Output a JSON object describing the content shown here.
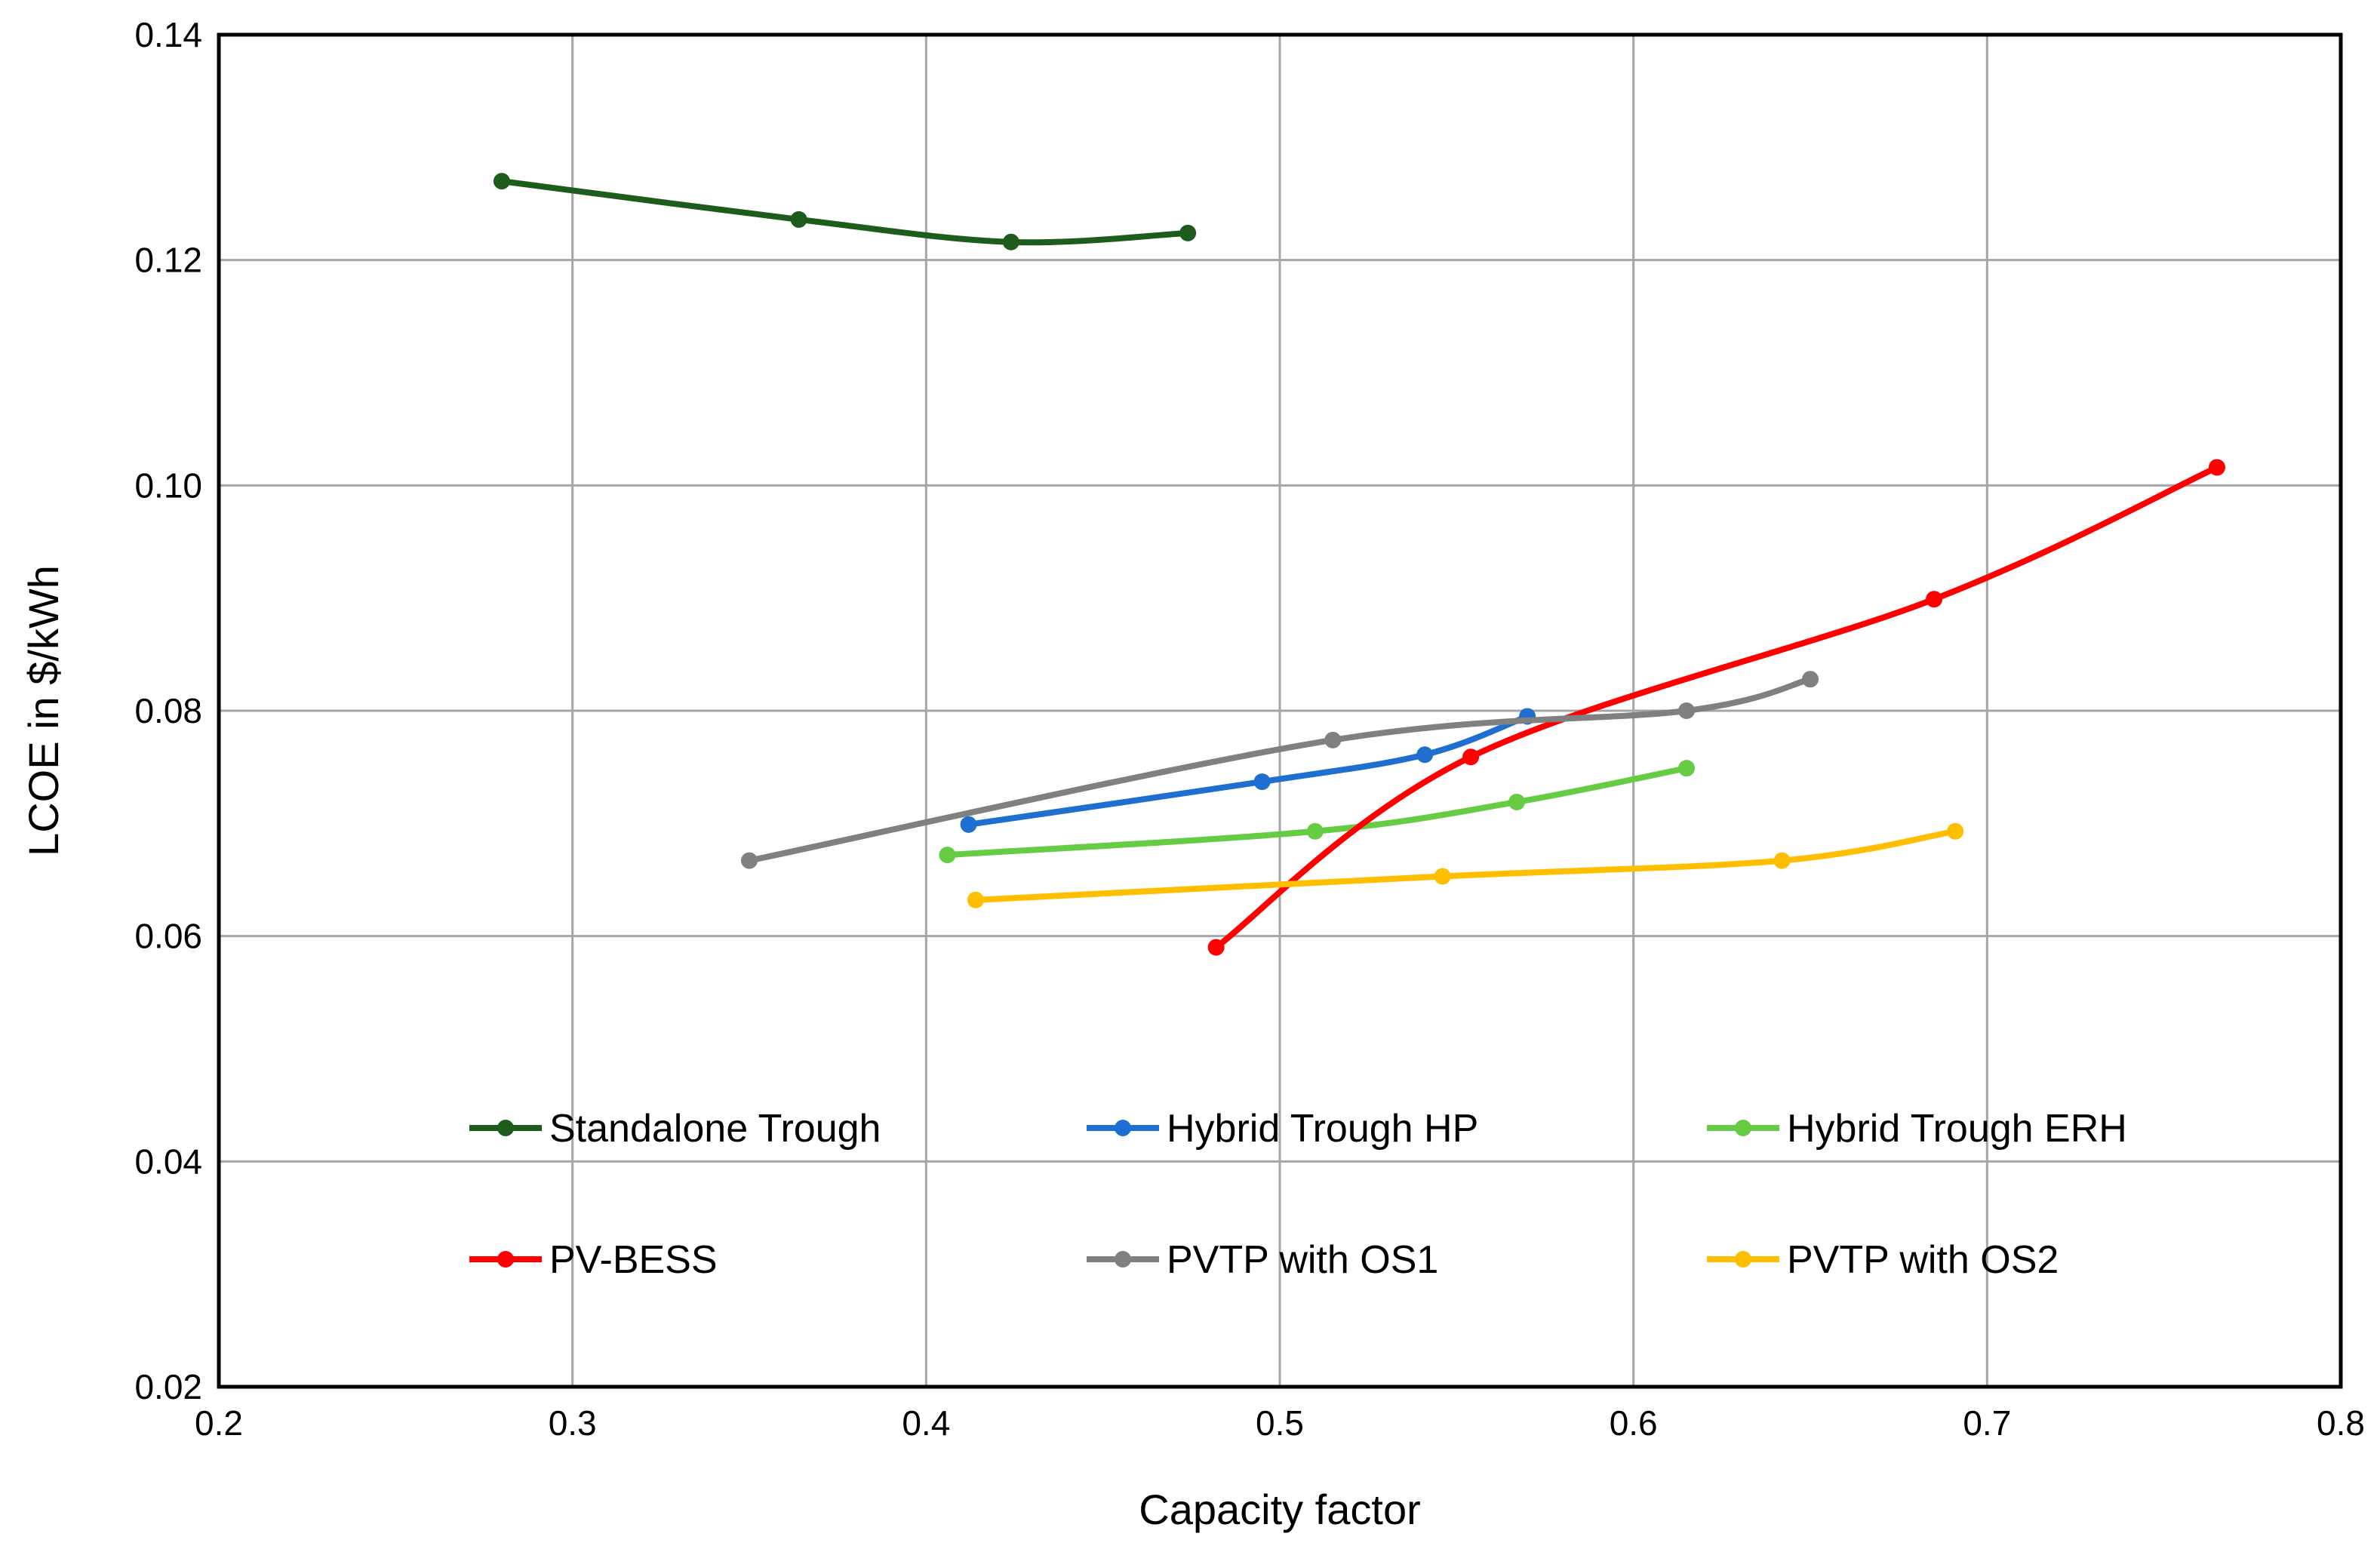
{
  "chart_data": {
    "type": "line",
    "title": "",
    "xlabel": "Capacity factor",
    "ylabel": "LCOE in $/kWh",
    "xlim": [
      0.2,
      0.8
    ],
    "ylim": [
      0.02,
      0.14
    ],
    "x_ticks": [
      0.2,
      0.3,
      0.4,
      0.5,
      0.6,
      0.7,
      0.8
    ],
    "x_tick_labels": [
      "0.2",
      "0.3",
      "0.4",
      "0.5",
      "0.6",
      "0.7",
      "0.8"
    ],
    "y_ticks": [
      0.02,
      0.04,
      0.06,
      0.08,
      0.1,
      0.12,
      0.14
    ],
    "y_tick_labels": [
      "0.02",
      "0.04",
      "0.06",
      "0.08",
      "0.10",
      "0.12",
      "0.14"
    ],
    "grid": true,
    "legend_position": "lower-center-inside",
    "series": [
      {
        "name": "Standalone Trough",
        "color": "#1e5c1e",
        "x": [
          0.28,
          0.364,
          0.424,
          0.474
        ],
        "y": [
          0.127,
          0.1236,
          0.1216,
          0.1224
        ]
      },
      {
        "name": "Hybrid Trough HP",
        "color": "#1f6fd1",
        "x": [
          0.412,
          0.495,
          0.541,
          0.57
        ],
        "y": [
          0.0699,
          0.0737,
          0.0761,
          0.0795
        ]
      },
      {
        "name": "Hybrid Trough ERH",
        "color": "#66cc44",
        "x": [
          0.406,
          0.51,
          0.567,
          0.615
        ],
        "y": [
          0.0672,
          0.0693,
          0.0719,
          0.0749
        ]
      },
      {
        "name": "PV-BESS",
        "color": "#ff0000",
        "x": [
          0.482,
          0.554,
          0.685,
          0.765
        ],
        "y": [
          0.059,
          0.0759,
          0.0899,
          0.1016
        ]
      },
      {
        "name": "PVTP with OS1",
        "color": "#808080",
        "x": [
          0.35,
          0.515,
          0.615,
          0.65
        ],
        "y": [
          0.0667,
          0.0774,
          0.08,
          0.0828
        ]
      },
      {
        "name": "PVTP with OS2",
        "color": "#ffbf00",
        "x": [
          0.414,
          0.546,
          0.642,
          0.691
        ],
        "y": [
          0.0632,
          0.0653,
          0.0667,
          0.0693
        ]
      }
    ]
  }
}
